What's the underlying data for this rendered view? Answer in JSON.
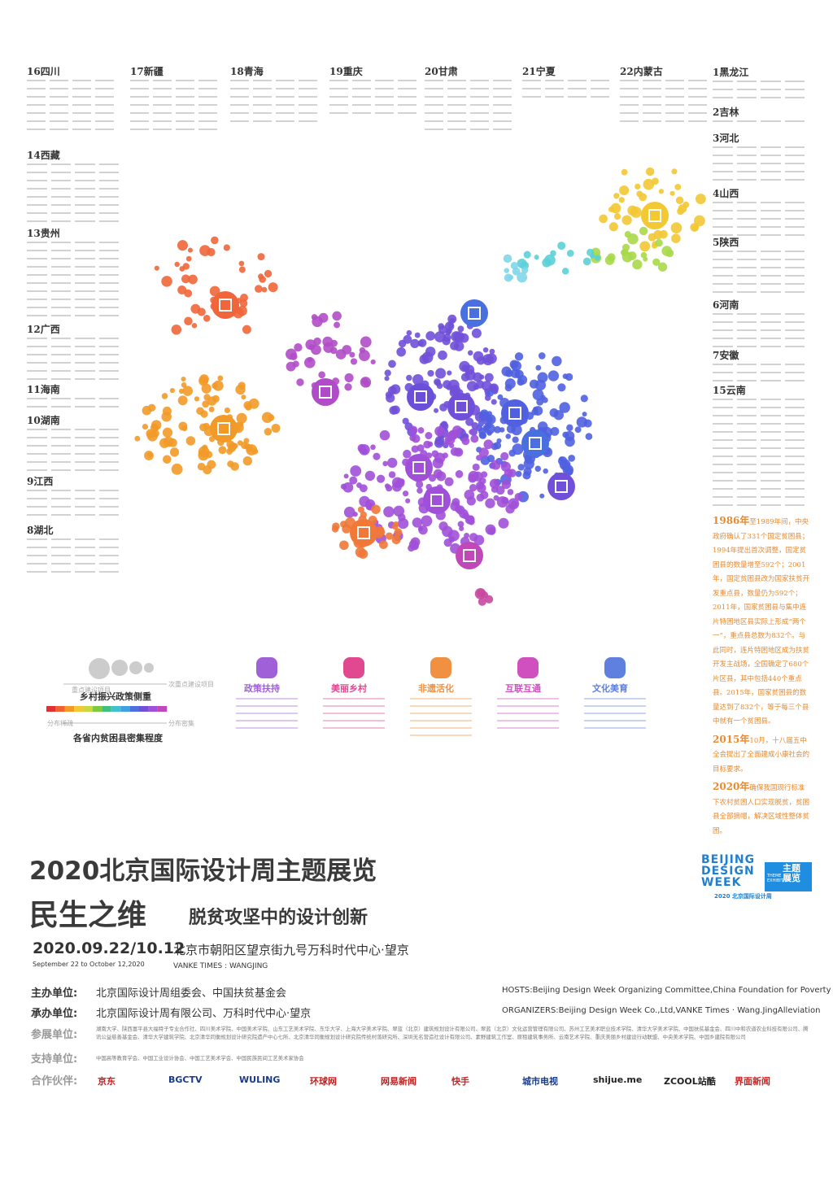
{
  "provinces": {
    "top": [
      "16四川",
      "17新疆",
      "18青海",
      "19重庆",
      "20甘肃",
      "21宁夏",
      "22内蒙古"
    ],
    "left": [
      "14西藏",
      "13贵州",
      "12广西",
      "11海南",
      "10湖南",
      "9江西",
      "8湖北"
    ],
    "right": [
      "1黑龙江",
      "2吉林",
      "3河北",
      "4山西",
      "5陕西",
      "6河南",
      "7安徽",
      "15云南"
    ]
  },
  "history": [
    {
      "year": "1986年",
      "text": "至1989年间，中央政府确认了331个国定贫困县；1994年提出首次调整，国定贫困县的数量增至592个；2001年，国定贫困县改为国家扶贫开发重点县，数量仍为592个；2011年，国家贫困县与集中连片特困地区县实际上形成“两个一”，重点县总数为832个。与此同时，连片特困地区成为扶贫开发主战场，全国确定了680个片区县，其中包括440个重点县。2015年，国家贫困县的数量达到了832个，等于每三个县中就有一个贫困县。"
    },
    {
      "year": "2015年",
      "text": "10月，十八届五中全会提出了全面建成小康社会的目标要求。"
    },
    {
      "year": "2020年",
      "text": "确保我国现行标准下农村贫困人口实现脱贫，贫困县全部摘帽，解决区域性整体贫困。"
    }
  ],
  "legend": {
    "major": "重点建设项目",
    "minor": "次重点建设项目",
    "focus": "乡村振兴政策侧重",
    "sparse": "分布稀疏",
    "dense": "分布密集",
    "density": "各省内贫困县密集程度"
  },
  "categories": [
    "政策扶持",
    "美丽乡村",
    "非遗活化",
    "互联互通",
    "文化美育"
  ],
  "footer": {
    "title": "2020北京国际设计周主题展览",
    "theme": "民生之维",
    "subtitle": "脱贫攻坚中的设计创新",
    "date": "2020.09.22/10.12",
    "date_en": "September 22 to October 12,2020",
    "venue": "北京市朝阳区望京街九号万科时代中心·望京",
    "venue_en": "VANKE TIMES : WANGJING",
    "host_label": "主办单位:",
    "host": "北京国际设计周组委会、中国扶贫基金会",
    "host_en": "HOSTS:Beijing Design Week Organizing Committee,China Foundation for Poverty",
    "organizer_label": "承办单位:",
    "organizer": "北京国际设计周有限公司、万科时代中心·望京",
    "organizer_en": "ORGANIZERS:Beijing Design Week Co.,Ltd,VANKE Times · Wang.JingAlleviation",
    "exhibitor_label": "参展单位:",
    "exhibitors": "湖南大学、陕西富平县大福特子专业合作社、四川美术学院、中国美术学院、山东工艺美术学院、东华大学、上海大学美术学院、翠蓝（北京）建筑规划设计有限公司、翠蓝（北京）文化运营管理有限公司、苏州工艺美术职业技术学院、清华大学美术学院、中国扶贫基金会、四川中和农道农业科技有限公司、腾讯公益慈善基金会、清华大学建筑学院、北京清华同衡规划设计研究院遗产中心七所、北京清华同衡规划设计研究院传统村落研究所、深圳无名营造社设计有限公司、素野建筑工作室、原租建筑事务所、云南艺术学院、重庆美丽乡村建设行动联盟、中央美术学院、中国乡建院有限公司",
    "support_label": "支持单位:",
    "supporters": "中国高等教育学会、中国工业设计协会、中国工艺美术学会、中国民族民间工艺美术家协会",
    "partner_label": "合作伙伴:",
    "partners": [
      "京东",
      "BGCTV",
      "WULING",
      "环球网",
      "网易新闻",
      "快手",
      "城市电视",
      "shijue.me",
      "ZCOOL站酷",
      "界面新闻"
    ]
  },
  "logo": {
    "name": "BEIJING DESIGN WEEK",
    "sub": "2020 北京国际设计周",
    "badge": "主题展览",
    "badge_en": "THEME EXHIBITION"
  }
}
